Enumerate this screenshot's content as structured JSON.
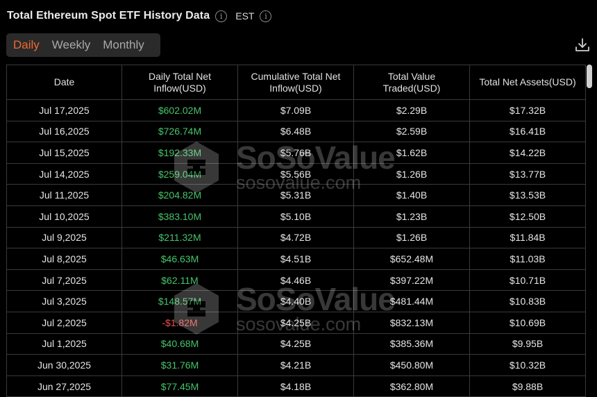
{
  "header": {
    "title": "Total Ethereum Spot ETF History Data",
    "timezone": "EST",
    "info_glyph": "i"
  },
  "tabs": [
    {
      "label": "Daily",
      "active": true
    },
    {
      "label": "Weekly",
      "active": false
    },
    {
      "label": "Monthly",
      "active": false
    }
  ],
  "colors": {
    "accent": "#ef6a2e",
    "positive": "#45c46a",
    "negative": "#ef4d4d",
    "background": "#000000"
  },
  "table": {
    "columns": [
      {
        "label": "Date"
      },
      {
        "label": "Daily Total Net Inflow(USD)"
      },
      {
        "label": "Cumulative Total Net Inflow(USD)"
      },
      {
        "label": "Total Value Traded(USD)"
      },
      {
        "label": "Total Net Assets(USD)"
      }
    ],
    "rows": [
      {
        "date": "Jul 17,2025",
        "daily": "$602.02M",
        "cumulative": "$7.09B",
        "traded": "$2.29B",
        "assets": "$17.32B",
        "sign": "pos"
      },
      {
        "date": "Jul 16,2025",
        "daily": "$726.74M",
        "cumulative": "$6.48B",
        "traded": "$2.59B",
        "assets": "$16.41B",
        "sign": "pos"
      },
      {
        "date": "Jul 15,2025",
        "daily": "$192.33M",
        "cumulative": "$5.76B",
        "traded": "$1.62B",
        "assets": "$14.22B",
        "sign": "pos"
      },
      {
        "date": "Jul 14,2025",
        "daily": "$259.04M",
        "cumulative": "$5.56B",
        "traded": "$1.26B",
        "assets": "$13.77B",
        "sign": "pos"
      },
      {
        "date": "Jul 11,2025",
        "daily": "$204.82M",
        "cumulative": "$5.31B",
        "traded": "$1.40B",
        "assets": "$13.53B",
        "sign": "pos"
      },
      {
        "date": "Jul 10,2025",
        "daily": "$383.10M",
        "cumulative": "$5.10B",
        "traded": "$1.23B",
        "assets": "$12.50B",
        "sign": "pos"
      },
      {
        "date": "Jul 9,2025",
        "daily": "$211.32M",
        "cumulative": "$4.72B",
        "traded": "$1.26B",
        "assets": "$11.84B",
        "sign": "pos"
      },
      {
        "date": "Jul 8,2025",
        "daily": "$46.63M",
        "cumulative": "$4.51B",
        "traded": "$652.48M",
        "assets": "$11.03B",
        "sign": "pos"
      },
      {
        "date": "Jul 7,2025",
        "daily": "$62.11M",
        "cumulative": "$4.46B",
        "traded": "$397.22M",
        "assets": "$10.71B",
        "sign": "pos"
      },
      {
        "date": "Jul 3,2025",
        "daily": "$148.57M",
        "cumulative": "$4.40B",
        "traded": "$481.44M",
        "assets": "$10.83B",
        "sign": "pos"
      },
      {
        "date": "Jul 2,2025",
        "daily": "-$1.82M",
        "cumulative": "$4.25B",
        "traded": "$832.13M",
        "assets": "$10.69B",
        "sign": "neg"
      },
      {
        "date": "Jul 1,2025",
        "daily": "$40.68M",
        "cumulative": "$4.25B",
        "traded": "$385.36M",
        "assets": "$9.95B",
        "sign": "pos"
      },
      {
        "date": "Jun 30,2025",
        "daily": "$31.76M",
        "cumulative": "$4.21B",
        "traded": "$450.80M",
        "assets": "$10.32B",
        "sign": "pos"
      },
      {
        "date": "Jun 27,2025",
        "daily": "$77.45M",
        "cumulative": "$4.18B",
        "traded": "$362.80M",
        "assets": "$9.88B",
        "sign": "pos"
      }
    ]
  },
  "watermark": {
    "brand": "SoSoValue",
    "url": "sosovalue.com"
  },
  "icons": {
    "info": "info-icon",
    "download": "download-icon",
    "logo": "sosovalue-logo-icon"
  }
}
